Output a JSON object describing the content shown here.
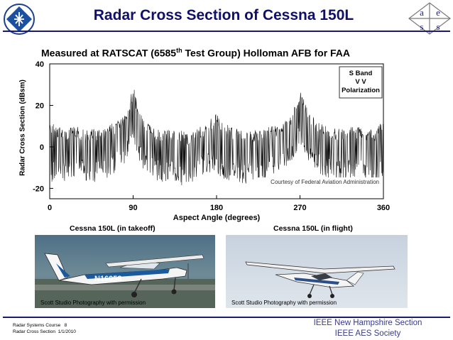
{
  "slide": {
    "title": "Radar Cross Section of Cessna 150L",
    "subtitle_prefix": "Measured at RATSCAT (6585",
    "subtitle_sup": "th",
    "subtitle_suffix": " Test Group) Holloman AFB for FAA"
  },
  "chart_data": {
    "type": "line",
    "ylabel": "Radar Cross Section (dBsm)",
    "xlabel": "Aspect Angle (degrees)",
    "x_ticks": [
      "0",
      "90",
      "180",
      "270",
      "360"
    ],
    "y_ticks": [
      "40",
      "20",
      "0",
      "-20"
    ],
    "xlim": [
      0,
      360
    ],
    "ylim": [
      -25,
      40
    ],
    "legend": [
      "S Band",
      "V V",
      "Polarization"
    ],
    "legend_position": "top-right",
    "annotation": "Courtesy of Federal Aviation Administration",
    "grid": false,
    "series": [
      {
        "x": [
          0,
          10,
          20,
          30,
          40,
          50,
          60,
          70,
          80,
          85,
          90,
          95,
          100,
          110,
          120,
          130,
          140,
          150,
          160,
          170,
          180,
          190,
          200,
          210,
          220,
          230,
          240,
          250,
          260,
          265,
          270,
          275,
          280,
          290,
          300,
          310,
          320,
          330,
          340,
          350,
          360
        ],
        "y": [
          12,
          10,
          9,
          10,
          8,
          9,
          9,
          12,
          16,
          20,
          30,
          20,
          15,
          10,
          8,
          9,
          8,
          7,
          9,
          12,
          16,
          11,
          9,
          8,
          8,
          9,
          10,
          11,
          16,
          21,
          27,
          22,
          16,
          12,
          10,
          9,
          9,
          10,
          9,
          8,
          13
        ],
        "min": [
          -18,
          -16,
          -17,
          -14,
          -18,
          -17,
          -16,
          -13,
          -9,
          -4,
          5,
          -5,
          -10,
          -15,
          -17,
          -16,
          -19,
          -18,
          -15,
          -12,
          -14,
          -17,
          -16,
          -18,
          -17,
          -16,
          -13,
          -12,
          -9,
          -4,
          2,
          -3,
          -9,
          -13,
          -15,
          -17,
          -16,
          -15,
          -17,
          -18,
          -14
        ]
      }
    ]
  },
  "captions": {
    "takeoff": "Cessna 150L (in takeoff)",
    "flight": "Cessna 150L (in flight)"
  },
  "photos": {
    "takeoff_credit": "Scott Studio Photography with permission",
    "flight_credit": "Scott Studio Photography with permission",
    "tail_number": "N16058"
  },
  "footer": {
    "course": "Radar Systems Course",
    "page": "8",
    "topic": "Radar Cross Section",
    "date": "1/1/2010",
    "org_line1": "IEEE New Hampshire Section",
    "org_line2": "IEEE AES Society"
  },
  "logo_right": {
    "letters": [
      "a",
      "e",
      "s",
      "s"
    ]
  },
  "colors": {
    "title": "#10106a",
    "rule": "#1a1a6e",
    "footer_org": "#3a3a8c"
  }
}
